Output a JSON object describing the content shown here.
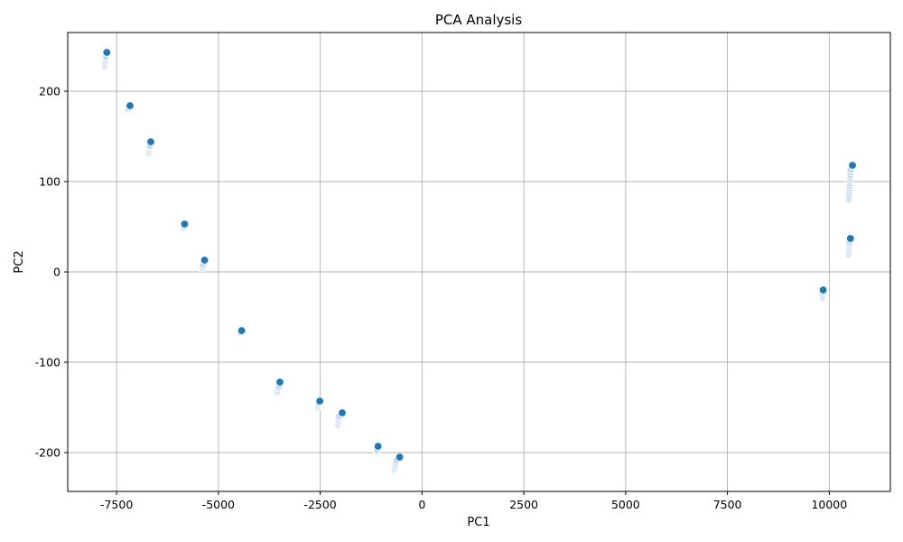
{
  "chart_data": {
    "type": "scatter",
    "title": "PCA Analysis",
    "xlabel": "PC1",
    "ylabel": "PC2",
    "xlim": [
      -8700,
      11500
    ],
    "ylim": [
      -243,
      265
    ],
    "grid": true,
    "xticks": [
      -7500,
      -5000,
      -2500,
      0,
      2500,
      5000,
      7500,
      10000
    ],
    "yticks": [
      -200,
      -100,
      0,
      100,
      200
    ],
    "colors": {
      "highlight": "#1f77b4",
      "faded": "#c6dbef"
    },
    "series": [
      {
        "name": "",
        "style": "faded",
        "points": [
          [
            -7790,
            228
          ],
          [
            -7785,
            230
          ],
          [
            -7780,
            232
          ],
          [
            -7775,
            234
          ],
          [
            -7770,
            236
          ],
          [
            -7765,
            238
          ],
          [
            -7230,
            179
          ],
          [
            -7220,
            180
          ],
          [
            -7210,
            181
          ],
          [
            -6710,
            132
          ],
          [
            -6705,
            134
          ],
          [
            -6700,
            136
          ],
          [
            -6695,
            138
          ],
          [
            -6690,
            139
          ],
          [
            -5860,
            48
          ],
          [
            -5850,
            49
          ],
          [
            -5840,
            50
          ],
          [
            -5400,
            2
          ],
          [
            -5395,
            4
          ],
          [
            -5390,
            6
          ],
          [
            -5380,
            8
          ],
          [
            -4470,
            -69
          ],
          [
            -4460,
            -68
          ],
          [
            -4455,
            -67
          ],
          [
            -3560,
            -134
          ],
          [
            -3550,
            -133
          ],
          [
            -3540,
            -131
          ],
          [
            -3530,
            -129
          ],
          [
            -3520,
            -127
          ],
          [
            -2560,
            -150
          ],
          [
            -2555,
            -149
          ],
          [
            -2550,
            -147
          ],
          [
            -2545,
            -145
          ],
          [
            -2070,
            -170
          ],
          [
            -2065,
            -168
          ],
          [
            -2060,
            -166
          ],
          [
            -2055,
            -164
          ],
          [
            -2050,
            -162
          ],
          [
            -2040,
            -160
          ],
          [
            -1120,
            -201
          ],
          [
            -1115,
            -200
          ],
          [
            -1110,
            -199
          ],
          [
            -1105,
            -197
          ],
          [
            -680,
            -219
          ],
          [
            -670,
            -217
          ],
          [
            -660,
            -215
          ],
          [
            -650,
            -213
          ],
          [
            -640,
            -211
          ],
          [
            -630,
            -209
          ],
          [
            9840,
            -29
          ],
          [
            9835,
            -27
          ],
          [
            9830,
            -25
          ],
          [
            9830,
            -23
          ],
          [
            10470,
            19
          ],
          [
            10475,
            21
          ],
          [
            10480,
            23
          ],
          [
            10485,
            25
          ],
          [
            10490,
            27
          ],
          [
            10490,
            29
          ],
          [
            10495,
            31
          ],
          [
            10495,
            33
          ],
          [
            10480,
            80
          ],
          [
            10485,
            83
          ],
          [
            10490,
            86
          ],
          [
            10495,
            89
          ],
          [
            10500,
            92
          ],
          [
            10505,
            95
          ],
          [
            10505,
            98
          ],
          [
            10510,
            101
          ],
          [
            10515,
            104
          ],
          [
            10515,
            107
          ],
          [
            10520,
            110
          ],
          [
            10520,
            113
          ]
        ]
      },
      {
        "name": "",
        "style": "highlight",
        "points": [
          [
            -7740,
            243
          ],
          [
            -7170,
            184
          ],
          [
            -6660,
            144
          ],
          [
            -5830,
            53
          ],
          [
            -5340,
            13
          ],
          [
            -4430,
            -65
          ],
          [
            -3490,
            -122
          ],
          [
            -2510,
            -143
          ],
          [
            -1960,
            -156
          ],
          [
            -1080,
            -193
          ],
          [
            -550,
            -205
          ],
          [
            9850,
            -20
          ],
          [
            10520,
            37
          ],
          [
            10570,
            118
          ]
        ]
      }
    ]
  }
}
